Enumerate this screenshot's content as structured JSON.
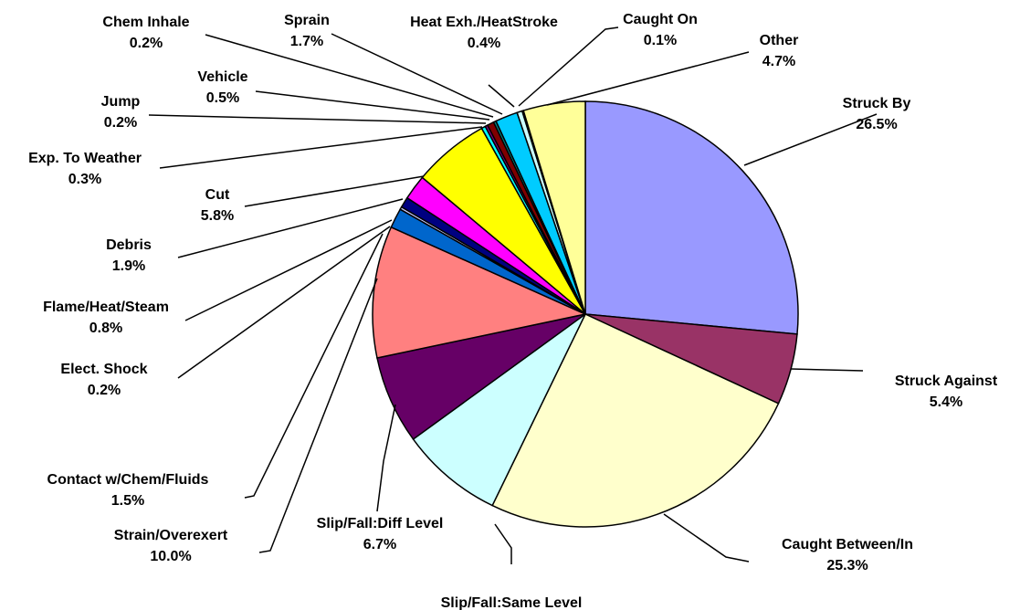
{
  "chart_data": {
    "type": "pie",
    "start_angle_deg": 0,
    "direction": "clockwise",
    "slices": [
      {
        "name": "Struck By",
        "value": 26.5,
        "label": "26.5%",
        "color": "#9999ff"
      },
      {
        "name": "Struck Against",
        "value": 5.4,
        "label": "5.4%",
        "color": "#993366"
      },
      {
        "name": "Caught Between/In",
        "value": 25.3,
        "label": "25.3%",
        "color": "#ffffcc"
      },
      {
        "name": "Slip/Fall:Same Level",
        "value": 7.8,
        "label": "7.8%",
        "color": "#ccffff"
      },
      {
        "name": "Slip/Fall:Diff Level",
        "value": 6.7,
        "label": "6.7%",
        "color": "#660066"
      },
      {
        "name": "Strain/Overexert",
        "value": 10.0,
        "label": "10.0%",
        "color": "#ff8080"
      },
      {
        "name": "Contact w/Chem/Fluids",
        "value": 1.5,
        "label": "1.5%",
        "color": "#0066cc"
      },
      {
        "name": "Elect. Shock",
        "value": 0.2,
        "label": "0.2%",
        "color": "#ccccff"
      },
      {
        "name": "Flame/Heat/Steam",
        "value": 0.8,
        "label": "0.8%",
        "color": "#000080"
      },
      {
        "name": "Debris",
        "value": 1.9,
        "label": "1.9%",
        "color": "#ff00ff"
      },
      {
        "name": "Cut",
        "value": 5.8,
        "label": "5.8%",
        "color": "#ffff00"
      },
      {
        "name": "Exp. To Weather",
        "value": 0.3,
        "label": "0.3%",
        "color": "#00ffff"
      },
      {
        "name": "Jump",
        "value": 0.2,
        "label": "0.2%",
        "color": "#800080"
      },
      {
        "name": "Vehicle",
        "value": 0.5,
        "label": "0.5%",
        "color": "#800000"
      },
      {
        "name": "Chem Inhale",
        "value": 0.2,
        "label": "0.2%",
        "color": "#008080"
      },
      {
        "name": "Sprain",
        "value": 1.7,
        "label": "1.7%",
        "color": "#00ccff"
      },
      {
        "name": "Heat Exh./HeatStroke",
        "value": 0.4,
        "label": "0.4%",
        "color": "#ccffff"
      },
      {
        "name": "Caught On",
        "value": 0.1,
        "label": "0.1%",
        "color": "#ccffcc"
      },
      {
        "name": "Other",
        "value": 4.7,
        "label": "4.7%",
        "color": "#ffff99"
      }
    ]
  }
}
